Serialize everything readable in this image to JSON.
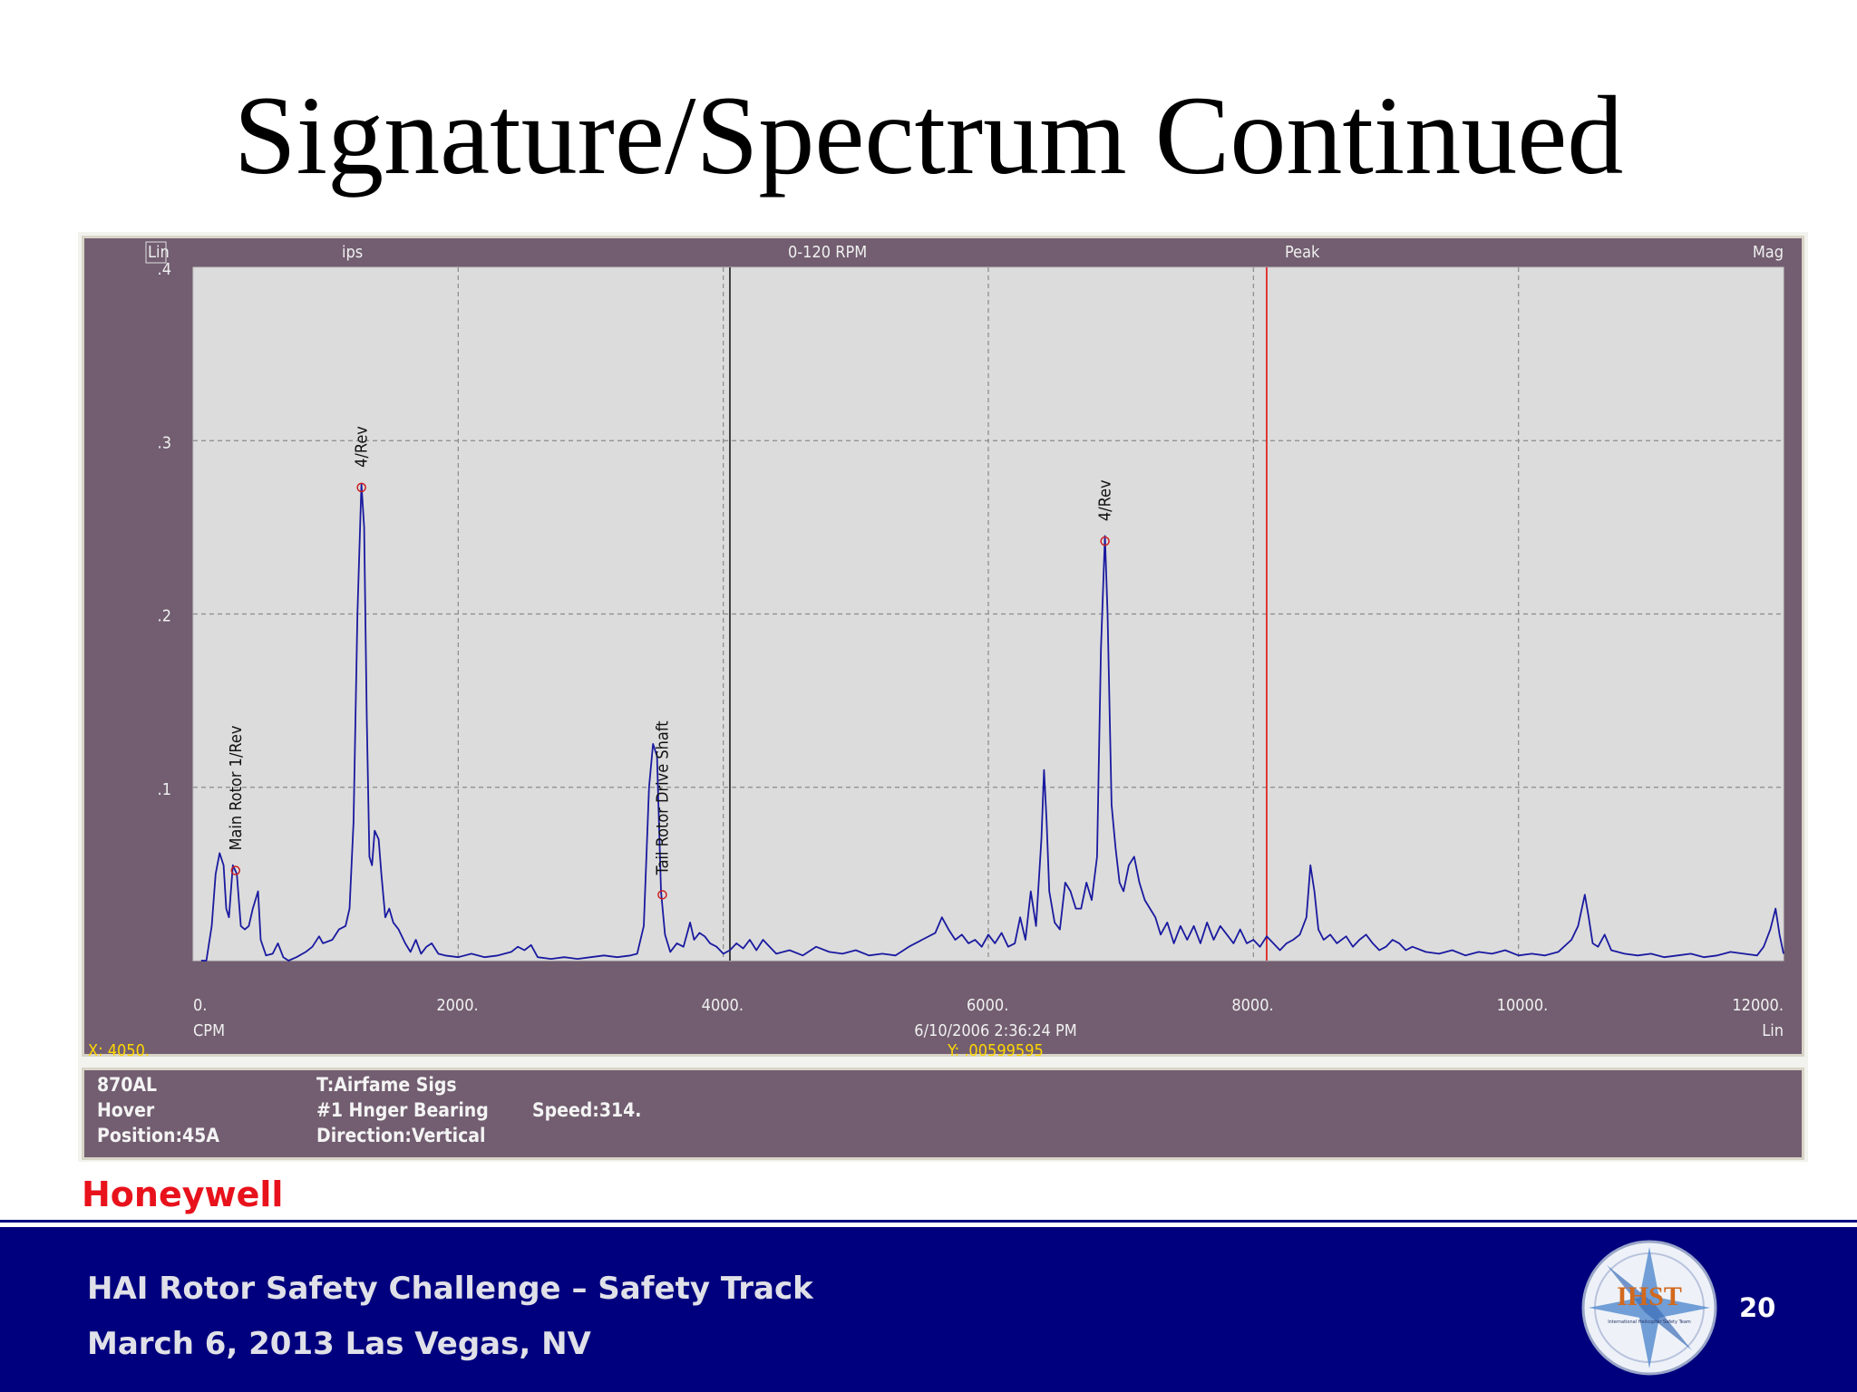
{
  "slide": {
    "title": "Signature/Spectrum Continued",
    "brand": "Honeywell",
    "footer_line1": "HAI  Rotor Safety Challenge – Safety Track",
    "footer_line2": "March 6, 2013 Las Vegas, NV",
    "page_number": "20",
    "logo_text": "IHST",
    "logo_subtext": "International Helicopter Safety Team"
  },
  "chart_data": {
    "type": "line",
    "header": {
      "scale": "Lin",
      "units": "ips",
      "range": "0-120 RPM",
      "detection": "Peak",
      "display": "Mag"
    },
    "xlim": [
      0,
      12000
    ],
    "ylim": [
      0,
      0.4
    ],
    "x_ticks": [
      "0.",
      "2000.",
      "4000.",
      "6000.",
      "8000.",
      "10000.",
      "12000."
    ],
    "y_ticks": [
      ".1",
      ".2",
      ".3",
      ".4"
    ],
    "xlabel": "CPM",
    "x_scale_label": "Lin",
    "timestamp": "6/10/2006 2:36:24 PM",
    "cursor_x_readout": "X: 4050.",
    "cursor_y_readout": "Y: .00599595",
    "grid": true,
    "black_cursor_x": 4050,
    "red_cursor_x": 8100,
    "series": [
      {
        "color": "#1a1aa0",
        "points": [
          [
            60,
            0
          ],
          [
            100,
            0
          ],
          [
            140,
            0.02
          ],
          [
            170,
            0.05
          ],
          [
            200,
            0.062
          ],
          [
            230,
            0.055
          ],
          [
            250,
            0.03
          ],
          [
            270,
            0.025
          ],
          [
            300,
            0.055
          ],
          [
            330,
            0.05
          ],
          [
            360,
            0.02
          ],
          [
            390,
            0.018
          ],
          [
            420,
            0.02
          ],
          [
            450,
            0.03
          ],
          [
            490,
            0.04
          ],
          [
            510,
            0.012
          ],
          [
            550,
            0.003
          ],
          [
            600,
            0.004
          ],
          [
            640,
            0.01
          ],
          [
            680,
            0.002
          ],
          [
            720,
            0.0
          ],
          [
            780,
            0.002
          ],
          [
            850,
            0.005
          ],
          [
            900,
            0.008
          ],
          [
            950,
            0.014
          ],
          [
            980,
            0.01
          ],
          [
            1050,
            0.012
          ],
          [
            1100,
            0.018
          ],
          [
            1150,
            0.02
          ],
          [
            1180,
            0.03
          ],
          [
            1210,
            0.08
          ],
          [
            1240,
            0.2
          ],
          [
            1270,
            0.275
          ],
          [
            1290,
            0.25
          ],
          [
            1310,
            0.14
          ],
          [
            1330,
            0.06
          ],
          [
            1350,
            0.055
          ],
          [
            1370,
            0.075
          ],
          [
            1400,
            0.07
          ],
          [
            1420,
            0.05
          ],
          [
            1450,
            0.025
          ],
          [
            1480,
            0.03
          ],
          [
            1510,
            0.022
          ],
          [
            1550,
            0.018
          ],
          [
            1600,
            0.01
          ],
          [
            1640,
            0.005
          ],
          [
            1680,
            0.012
          ],
          [
            1720,
            0.004
          ],
          [
            1760,
            0.008
          ],
          [
            1800,
            0.01
          ],
          [
            1850,
            0.004
          ],
          [
            1900,
            0.003
          ],
          [
            2000,
            0.002
          ],
          [
            2100,
            0.004
          ],
          [
            2200,
            0.002
          ],
          [
            2300,
            0.003
          ],
          [
            2400,
            0.005
          ],
          [
            2450,
            0.008
          ],
          [
            2500,
            0.006
          ],
          [
            2550,
            0.009
          ],
          [
            2600,
            0.002
          ],
          [
            2700,
            0.001
          ],
          [
            2800,
            0.002
          ],
          [
            2900,
            0.001
          ],
          [
            3000,
            0.002
          ],
          [
            3100,
            0.003
          ],
          [
            3200,
            0.002
          ],
          [
            3300,
            0.003
          ],
          [
            3350,
            0.004
          ],
          [
            3400,
            0.02
          ],
          [
            3440,
            0.1
          ],
          [
            3470,
            0.125
          ],
          [
            3500,
            0.118
          ],
          [
            3530,
            0.04
          ],
          [
            3560,
            0.015
          ],
          [
            3600,
            0.005
          ],
          [
            3650,
            0.01
          ],
          [
            3700,
            0.008
          ],
          [
            3750,
            0.022
          ],
          [
            3780,
            0.012
          ],
          [
            3820,
            0.016
          ],
          [
            3860,
            0.014
          ],
          [
            3900,
            0.01
          ],
          [
            3950,
            0.008
          ],
          [
            4000,
            0.004
          ],
          [
            4050,
            0.006
          ],
          [
            4100,
            0.01
          ],
          [
            4150,
            0.007
          ],
          [
            4200,
            0.012
          ],
          [
            4250,
            0.006
          ],
          [
            4300,
            0.012
          ],
          [
            4350,
            0.008
          ],
          [
            4400,
            0.004
          ],
          [
            4500,
            0.006
          ],
          [
            4600,
            0.003
          ],
          [
            4700,
            0.008
          ],
          [
            4800,
            0.005
          ],
          [
            4900,
            0.004
          ],
          [
            5000,
            0.006
          ],
          [
            5100,
            0.003
          ],
          [
            5200,
            0.004
          ],
          [
            5300,
            0.003
          ],
          [
            5400,
            0.008
          ],
          [
            5500,
            0.012
          ],
          [
            5600,
            0.016
          ],
          [
            5650,
            0.025
          ],
          [
            5700,
            0.018
          ],
          [
            5750,
            0.012
          ],
          [
            5800,
            0.015
          ],
          [
            5850,
            0.01
          ],
          [
            5900,
            0.012
          ],
          [
            5950,
            0.008
          ],
          [
            6000,
            0.015
          ],
          [
            6050,
            0.01
          ],
          [
            6100,
            0.016
          ],
          [
            6150,
            0.008
          ],
          [
            6200,
            0.01
          ],
          [
            6240,
            0.025
          ],
          [
            6280,
            0.012
          ],
          [
            6320,
            0.04
          ],
          [
            6360,
            0.02
          ],
          [
            6400,
            0.07
          ],
          [
            6420,
            0.11
          ],
          [
            6440,
            0.08
          ],
          [
            6460,
            0.04
          ],
          [
            6500,
            0.022
          ],
          [
            6540,
            0.018
          ],
          [
            6580,
            0.045
          ],
          [
            6620,
            0.04
          ],
          [
            6660,
            0.03
          ],
          [
            6700,
            0.03
          ],
          [
            6740,
            0.045
          ],
          [
            6780,
            0.035
          ],
          [
            6820,
            0.06
          ],
          [
            6850,
            0.18
          ],
          [
            6880,
            0.245
          ],
          [
            6900,
            0.2
          ],
          [
            6930,
            0.09
          ],
          [
            6960,
            0.065
          ],
          [
            6990,
            0.045
          ],
          [
            7020,
            0.04
          ],
          [
            7060,
            0.055
          ],
          [
            7100,
            0.06
          ],
          [
            7140,
            0.045
          ],
          [
            7180,
            0.035
          ],
          [
            7220,
            0.03
          ],
          [
            7260,
            0.025
          ],
          [
            7300,
            0.015
          ],
          [
            7350,
            0.022
          ],
          [
            7400,
            0.01
          ],
          [
            7450,
            0.02
          ],
          [
            7500,
            0.012
          ],
          [
            7550,
            0.02
          ],
          [
            7600,
            0.01
          ],
          [
            7650,
            0.022
          ],
          [
            7700,
            0.012
          ],
          [
            7750,
            0.02
          ],
          [
            7800,
            0.015
          ],
          [
            7850,
            0.01
          ],
          [
            7900,
            0.018
          ],
          [
            7950,
            0.01
          ],
          [
            8000,
            0.012
          ],
          [
            8050,
            0.008
          ],
          [
            8100,
            0.014
          ],
          [
            8150,
            0.01
          ],
          [
            8200,
            0.006
          ],
          [
            8250,
            0.01
          ],
          [
            8300,
            0.012
          ],
          [
            8350,
            0.015
          ],
          [
            8400,
            0.025
          ],
          [
            8430,
            0.055
          ],
          [
            8460,
            0.04
          ],
          [
            8490,
            0.018
          ],
          [
            8530,
            0.012
          ],
          [
            8580,
            0.015
          ],
          [
            8630,
            0.01
          ],
          [
            8700,
            0.014
          ],
          [
            8750,
            0.008
          ],
          [
            8800,
            0.012
          ],
          [
            8850,
            0.015
          ],
          [
            8900,
            0.01
          ],
          [
            8950,
            0.006
          ],
          [
            9000,
            0.008
          ],
          [
            9050,
            0.012
          ],
          [
            9100,
            0.01
          ],
          [
            9150,
            0.006
          ],
          [
            9200,
            0.008
          ],
          [
            9300,
            0.005
          ],
          [
            9400,
            0.004
          ],
          [
            9500,
            0.006
          ],
          [
            9600,
            0.003
          ],
          [
            9700,
            0.005
          ],
          [
            9800,
            0.004
          ],
          [
            9900,
            0.006
          ],
          [
            10000,
            0.003
          ],
          [
            10100,
            0.004
          ],
          [
            10200,
            0.003
          ],
          [
            10300,
            0.005
          ],
          [
            10400,
            0.012
          ],
          [
            10450,
            0.02
          ],
          [
            10500,
            0.038
          ],
          [
            10530,
            0.025
          ],
          [
            10560,
            0.01
          ],
          [
            10600,
            0.008
          ],
          [
            10650,
            0.015
          ],
          [
            10700,
            0.006
          ],
          [
            10800,
            0.004
          ],
          [
            10900,
            0.003
          ],
          [
            11000,
            0.004
          ],
          [
            11100,
            0.002
          ],
          [
            11200,
            0.003
          ],
          [
            11300,
            0.004
          ],
          [
            11400,
            0.002
          ],
          [
            11500,
            0.003
          ],
          [
            11600,
            0.005
          ],
          [
            11700,
            0.004
          ],
          [
            11800,
            0.003
          ],
          [
            11850,
            0.008
          ],
          [
            11900,
            0.018
          ],
          [
            11940,
            0.03
          ],
          [
            11970,
            0.015
          ],
          [
            12000,
            0.004
          ]
        ]
      }
    ],
    "annotations": [
      {
        "text": "Main Rotor 1/Rev",
        "x": 320,
        "y": 0.052
      },
      {
        "text": "4/Rev",
        "x": 1270,
        "y": 0.273
      },
      {
        "text": "Tail Rotor Drive Shaft",
        "x": 3540,
        "y": 0.038
      },
      {
        "text": "4/Rev",
        "x": 6880,
        "y": 0.242
      }
    ]
  },
  "info": {
    "c1r1": "870AL",
    "c1r2": "Hover",
    "c1r3": "Position:45A",
    "c2r1": "T:Airfame Sigs",
    "c2r2": "#1 Hnger Bearing",
    "c2r3": "Direction:Vertical",
    "c3r2": "Speed:314."
  }
}
